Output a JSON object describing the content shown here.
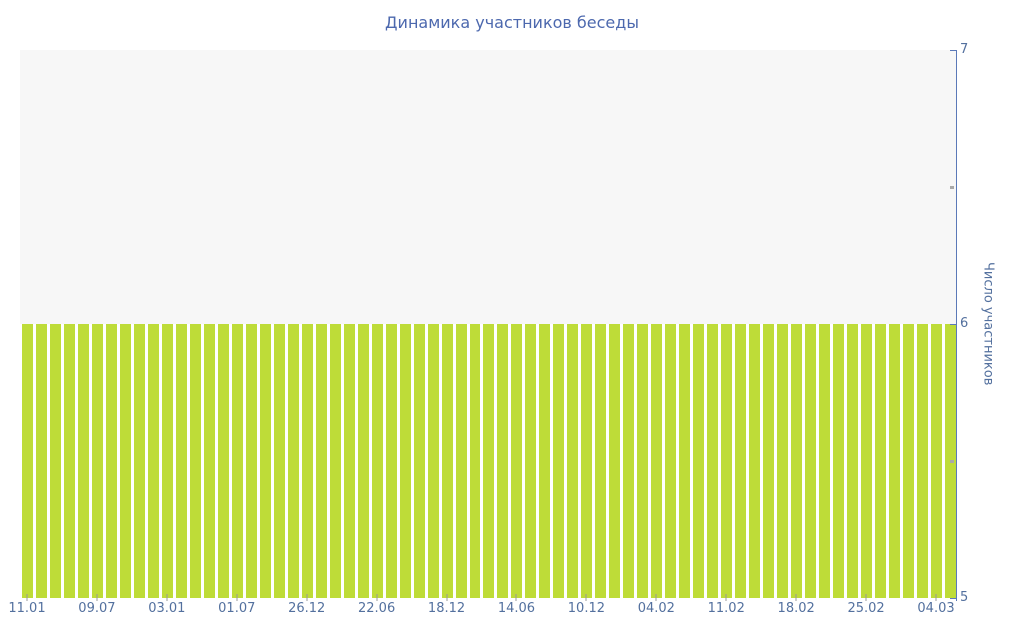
{
  "header": {
    "title": "Динамика участников беседы"
  },
  "chart_data": {
    "type": "bar",
    "title": "Динамика участников беседы",
    "xlabel": "",
    "ylabel": "Число участников",
    "ylim": [
      5,
      7
    ],
    "y_major_ticks": [
      {
        "value": 7,
        "label": "7"
      },
      {
        "value": 6,
        "label": "6"
      },
      {
        "value": 5,
        "label": "5"
      }
    ],
    "y_minor_ticks": [
      6.5,
      5.5
    ],
    "x_tick_labels": [
      "11.01",
      "09.07",
      "03.01",
      "01.07",
      "26.12",
      "22.06",
      "18.12",
      "14.06",
      "10.12",
      "04.02",
      "11.02",
      "18.02",
      "25.02",
      "04.03"
    ],
    "x_label_every": 5,
    "grid": false,
    "legend_position": "none",
    "values": [
      6,
      6,
      6,
      6,
      6,
      6,
      6,
      6,
      6,
      6,
      6,
      6,
      6,
      6,
      6,
      6,
      6,
      6,
      6,
      6,
      6,
      6,
      6,
      6,
      6,
      6,
      6,
      6,
      6,
      6,
      6,
      6,
      6,
      6,
      6,
      6,
      6,
      6,
      6,
      6,
      6,
      6,
      6,
      6,
      6,
      6,
      6,
      6,
      6,
      6,
      6,
      6,
      6,
      6,
      6,
      6,
      6,
      6,
      6,
      6,
      6,
      6,
      6,
      6,
      6,
      6,
      6
    ]
  },
  "colors": {
    "bar": "#bedc38",
    "plot_background": "#f7f7f7",
    "axis": "#5b79b8",
    "tick_label": "#53709e",
    "title": "#4c68ae",
    "minor_tick": "#a9a9a9",
    "x_tick": "#999999"
  }
}
